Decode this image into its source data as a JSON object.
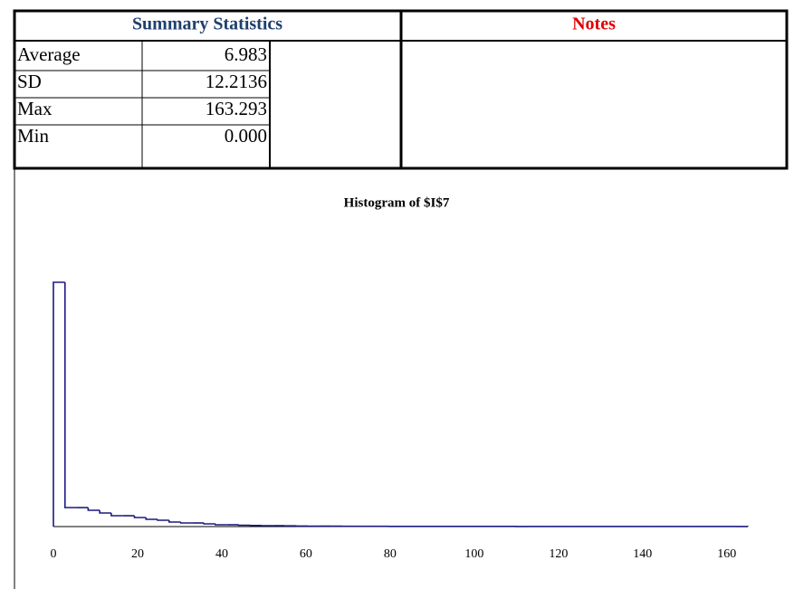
{
  "table": {
    "headers": [
      "Summary Statistics",
      "Notes"
    ],
    "rows": [
      [
        "Average",
        "6.983"
      ],
      [
        "SD",
        "12.2136"
      ],
      [
        "Max",
        "163.293"
      ],
      [
        "Min",
        "0.000"
      ]
    ]
  },
  "chart_data": {
    "type": "histogram",
    "title": "Histogram of $I$7",
    "color": "#1a1a80",
    "bins": [
      0,
      2.75,
      5.5,
      8.25,
      11,
      13.75,
      16.5,
      19.25,
      22,
      24.75,
      27.5,
      30.25,
      33,
      35.75,
      38.5,
      41.25,
      44,
      46.75,
      49.5,
      52.25,
      55,
      57.75,
      60.5,
      63.25,
      66,
      68.75,
      71.5,
      74.25,
      77,
      79.75,
      82.5,
      85.25,
      88,
      90.75,
      93.5,
      96.25,
      99,
      101.75,
      104.5,
      107.25,
      110,
      112.75,
      115.5,
      118.25,
      121,
      123.75,
      126.5,
      129.25,
      132,
      134.75,
      137.5,
      140.25,
      143,
      145.75,
      148.5,
      151.25,
      154,
      156.75,
      159.5,
      162.25,
      165
    ],
    "values": [
      270,
      21,
      21,
      18,
      15,
      12,
      12,
      10,
      8,
      7,
      5,
      4,
      4,
      3,
      2,
      2,
      1.5,
      1.2,
      1,
      1,
      0.8,
      0.6,
      0.5,
      0.5,
      0.4,
      0.3,
      0.3,
      0.3,
      0.3,
      0.2,
      0.2,
      0.2,
      0.2,
      0.2,
      0.2,
      0.2,
      0.2,
      0.2,
      0.2,
      0.2,
      0.1,
      0.1,
      0.1,
      0.1,
      0.1,
      0.1,
      0.1,
      0.1,
      0.1,
      0.1,
      0.1,
      0.1,
      0.1,
      0.1,
      0.1,
      0.1,
      0.1,
      0.1,
      0.1,
      0.1
    ],
    "xlim": [
      0,
      165
    ],
    "ylim": [
      0,
      320
    ],
    "xticks": [
      0,
      20,
      40,
      60,
      80,
      100,
      120,
      140,
      160
    ]
  }
}
